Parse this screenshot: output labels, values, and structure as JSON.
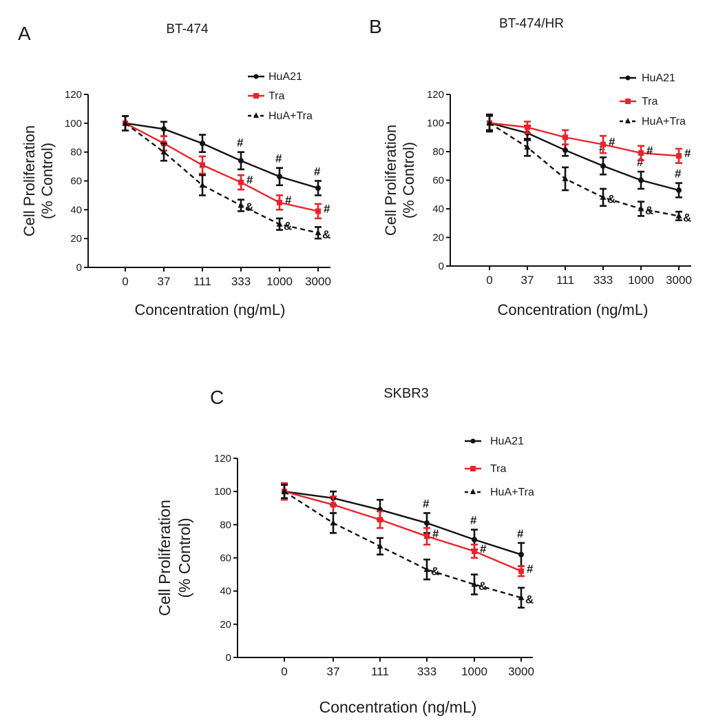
{
  "chart_data": [
    {
      "panel_label": "A",
      "type": "line",
      "title": "BT-474",
      "xlabel": "Concentration (ng/mL)",
      "ylabel_line1": "Cell Proliferation",
      "ylabel_line2": "(% Control)",
      "categories": [
        "0",
        "37",
        "111",
        "333",
        "1000",
        "3000"
      ],
      "yticks": [
        "0",
        "20",
        "40",
        "60",
        "80",
        "100",
        "120"
      ],
      "ylim": [
        0,
        120
      ],
      "series": [
        {
          "name": "HuA21",
          "color": "#111111",
          "dash": false,
          "marker": "circle",
          "values": [
            100,
            96,
            86,
            74,
            63,
            55
          ],
          "errors": [
            5,
            5,
            6,
            6,
            6,
            5
          ],
          "annotations": [
            "",
            "",
            "",
            "#",
            "#",
            "#"
          ]
        },
        {
          "name": "Tra",
          "color": "#e8242b",
          "dash": false,
          "marker": "square",
          "values": [
            100,
            86,
            71,
            59,
            45,
            39
          ],
          "errors": [
            5,
            5,
            6,
            5,
            5,
            5
          ],
          "annotations": [
            "",
            "",
            "",
            "#",
            "#",
            "#"
          ]
        },
        {
          "name": "HuA+Tra",
          "color": "#111111",
          "dash": true,
          "marker": "triangle",
          "values": [
            100,
            80,
            57,
            43,
            30,
            24
          ],
          "errors": [
            5,
            6,
            7,
            4,
            4,
            4
          ],
          "annotations": [
            "",
            "",
            "",
            "&",
            "&",
            "&"
          ]
        }
      ]
    },
    {
      "panel_label": "B",
      "type": "line",
      "title": "BT-474/HR",
      "xlabel": "Concentration (ng/mL)",
      "ylabel_line1": "Cell Proliferation",
      "ylabel_line2": "(% Control)",
      "categories": [
        "0",
        "37",
        "111",
        "333",
        "1000",
        "3000"
      ],
      "yticks": [
        "0",
        "20",
        "40",
        "60",
        "80",
        "100",
        "120"
      ],
      "ylim": [
        0,
        120
      ],
      "series": [
        {
          "name": "HuA21",
          "color": "#111111",
          "dash": false,
          "marker": "circle",
          "values": [
            100,
            93,
            81,
            70,
            60,
            53
          ],
          "errors": [
            6,
            5,
            4,
            6,
            6,
            5
          ],
          "annotations": [
            "",
            "",
            "",
            "#",
            "#",
            "#"
          ]
        },
        {
          "name": "Tra",
          "color": "#e8242b",
          "dash": false,
          "marker": "square",
          "values": [
            100,
            97,
            90,
            85,
            79,
            77
          ],
          "errors": [
            5,
            4,
            5,
            6,
            5,
            5
          ],
          "annotations": [
            "",
            "",
            "",
            "#",
            "#",
            "#"
          ]
        },
        {
          "name": "HuA+Tra",
          "color": "#111111",
          "dash": true,
          "marker": "triangle",
          "values": [
            100,
            83,
            61,
            48,
            40,
            35
          ],
          "errors": [
            5,
            6,
            8,
            6,
            5,
            3
          ],
          "annotations": [
            "",
            "",
            "",
            "&",
            "&",
            "&"
          ]
        }
      ]
    },
    {
      "panel_label": "C",
      "type": "line",
      "title": "SKBR3",
      "xlabel": "Concentration (ng/mL)",
      "ylabel_line1": "Cell Proliferation",
      "ylabel_line2": "(% Control)",
      "categories": [
        "0",
        "37",
        "111",
        "333",
        "1000",
        "3000"
      ],
      "yticks": [
        "0",
        "20",
        "40",
        "60",
        "80",
        "100",
        "120"
      ],
      "ylim": [
        0,
        120
      ],
      "series": [
        {
          "name": "HuA21",
          "color": "#111111",
          "dash": false,
          "marker": "circle",
          "values": [
            100,
            96,
            89,
            81,
            71,
            62
          ],
          "errors": [
            5,
            4,
            6,
            6,
            6,
            7
          ],
          "annotations": [
            "",
            "",
            "",
            "#",
            "#",
            "#"
          ]
        },
        {
          "name": "Tra",
          "color": "#e8242b",
          "dash": false,
          "marker": "square",
          "values": [
            100,
            92,
            83,
            73,
            64,
            52
          ],
          "errors": [
            5,
            5,
            5,
            5,
            4,
            3
          ],
          "annotations": [
            "",
            "",
            "",
            "#",
            "#",
            "#"
          ]
        },
        {
          "name": "HuA+Tra",
          "color": "#111111",
          "dash": true,
          "marker": "triangle",
          "values": [
            100,
            81,
            67,
            53,
            44,
            36
          ],
          "errors": [
            4,
            6,
            5,
            6,
            6,
            6
          ],
          "annotations": [
            "",
            "",
            "",
            "&",
            "&",
            "&"
          ]
        }
      ]
    }
  ]
}
